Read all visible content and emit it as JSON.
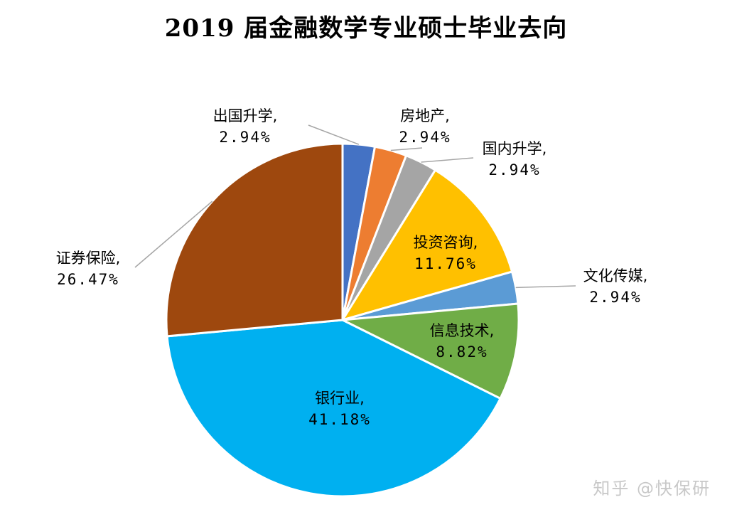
{
  "chart_data": {
    "type": "pie",
    "title": "2019 届金融数学专业硕士毕业去向",
    "slices": [
      {
        "label": "出国升学,",
        "pct_label": "2.94%",
        "value": 2.94,
        "color": "#4472C4"
      },
      {
        "label": "房地产,",
        "pct_label": "2.94%",
        "value": 2.94,
        "color": "#ED7D31"
      },
      {
        "label": "国内升学,",
        "pct_label": "2.94%",
        "value": 2.94,
        "color": "#A5A5A5"
      },
      {
        "label": "投资咨询,",
        "pct_label": "11.76%",
        "value": 11.76,
        "color": "#FFC000"
      },
      {
        "label": "文化传媒,",
        "pct_label": "2.94%",
        "value": 2.94,
        "color": "#5B9BD5"
      },
      {
        "label": "信息技术,",
        "pct_label": "8.82%",
        "value": 8.82,
        "color": "#70AD47"
      },
      {
        "label": "银行业,",
        "pct_label": "41.18%",
        "value": 41.18,
        "color": "#00B0F0"
      },
      {
        "label": "证券保险,",
        "pct_label": "26.47%",
        "value": 26.47,
        "color": "#9E480E"
      }
    ]
  },
  "watermark": "知乎 @快保研"
}
